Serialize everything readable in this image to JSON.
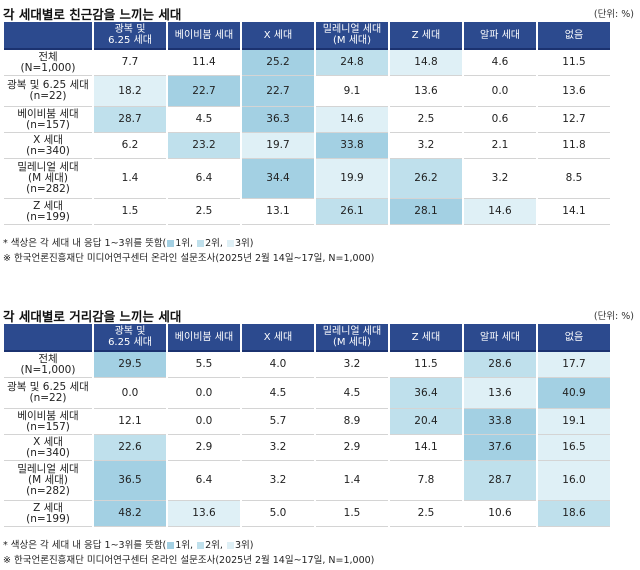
{
  "colors": {
    "rank1": "#a3d0e3",
    "rank2": "#bfe0ec",
    "rank3": "#dff0f6",
    "header": "#2c4a8e"
  },
  "columns": [
    "광복 및\n6.25 세대",
    "베이비붐 세대",
    "X 세대",
    "밀레니얼 세대\n(M 세대)",
    "Z 세대",
    "알파 세대",
    "없음"
  ],
  "unit": "(단위: %)",
  "tables": [
    {
      "title": "각 세대별로 친근감을 느끼는 세대",
      "rows": [
        {
          "label": "전체\n(N=1,000)",
          "values": [
            "7.7",
            "11.4",
            "25.2",
            "24.8",
            "14.8",
            "4.6",
            "11.5"
          ],
          "ranks": [
            0,
            0,
            1,
            2,
            3,
            0,
            0
          ]
        },
        {
          "label": "광복 및 6.25 세대\n(n=22)",
          "values": [
            "18.2",
            "22.7",
            "22.7",
            "9.1",
            "13.6",
            "0.0",
            "13.6"
          ],
          "ranks": [
            3,
            1,
            1,
            0,
            0,
            0,
            0
          ]
        },
        {
          "label": "베이비붐 세대\n(n=157)",
          "values": [
            "28.7",
            "4.5",
            "36.3",
            "14.6",
            "2.5",
            "0.6",
            "12.7"
          ],
          "ranks": [
            2,
            0,
            1,
            3,
            0,
            0,
            0
          ]
        },
        {
          "label": "X 세대\n(n=340)",
          "values": [
            "6.2",
            "23.2",
            "19.7",
            "33.8",
            "3.2",
            "2.1",
            "11.8"
          ],
          "ranks": [
            0,
            2,
            3,
            1,
            0,
            0,
            0
          ]
        },
        {
          "label": "밀레니얼 세대\n(M 세대)\n(n=282)",
          "values": [
            "1.4",
            "6.4",
            "34.4",
            "19.9",
            "26.2",
            "3.2",
            "8.5"
          ],
          "ranks": [
            0,
            0,
            1,
            3,
            2,
            0,
            0
          ]
        },
        {
          "label": "Z 세대\n(n=199)",
          "values": [
            "1.5",
            "2.5",
            "13.1",
            "26.1",
            "28.1",
            "14.6",
            "14.1"
          ],
          "ranks": [
            0,
            0,
            0,
            2,
            1,
            3,
            0
          ]
        }
      ],
      "note1": "* 색상은 각 세대 내 응답 1~3위를 뜻함(",
      "legend": [
        "1위,",
        "2위,",
        "3위)"
      ],
      "note2": "※ 한국언론진흥재단 미디어연구센터 온라인 설문조사(2025년 2월 14일~17일, N=1,000)"
    },
    {
      "title": "각 세대별로 거리감을 느끼는 세대",
      "rows": [
        {
          "label": "전체\n(N=1,000)",
          "values": [
            "29.5",
            "5.5",
            "4.0",
            "3.2",
            "11.5",
            "28.6",
            "17.7"
          ],
          "ranks": [
            1,
            0,
            0,
            0,
            0,
            2,
            3
          ]
        },
        {
          "label": "광복 및 6.25 세대\n(n=22)",
          "values": [
            "0.0",
            "0.0",
            "4.5",
            "4.5",
            "36.4",
            "13.6",
            "40.9"
          ],
          "ranks": [
            0,
            0,
            0,
            0,
            2,
            3,
            1
          ]
        },
        {
          "label": "베이비붐 세대\n(n=157)",
          "values": [
            "12.1",
            "0.0",
            "5.7",
            "8.9",
            "20.4",
            "33.8",
            "19.1"
          ],
          "ranks": [
            0,
            0,
            0,
            0,
            2,
            1,
            3
          ]
        },
        {
          "label": "X 세대\n(n=340)",
          "values": [
            "22.6",
            "2.9",
            "3.2",
            "2.9",
            "14.1",
            "37.6",
            "16.5"
          ],
          "ranks": [
            2,
            0,
            0,
            0,
            0,
            1,
            3
          ]
        },
        {
          "label": "밀레니얼 세대\n(M 세대)\n(n=282)",
          "values": [
            "36.5",
            "6.4",
            "3.2",
            "1.4",
            "7.8",
            "28.7",
            "16.0"
          ],
          "ranks": [
            1,
            0,
            0,
            0,
            0,
            2,
            3
          ]
        },
        {
          "label": "Z 세대\n(n=199)",
          "values": [
            "48.2",
            "13.6",
            "5.0",
            "1.5",
            "2.5",
            "10.6",
            "18.6"
          ],
          "ranks": [
            1,
            3,
            0,
            0,
            0,
            0,
            2
          ]
        }
      ],
      "note1": "* 색상은 각 세대 내 응답 1~3위를 뜻함(",
      "legend": [
        "1위,",
        "2위,",
        "3위)"
      ],
      "note2": "※ 한국언론진흥재단 미디어연구센터 온라인 설문조사(2025년 2월 14일~17일, N=1,000)"
    }
  ]
}
